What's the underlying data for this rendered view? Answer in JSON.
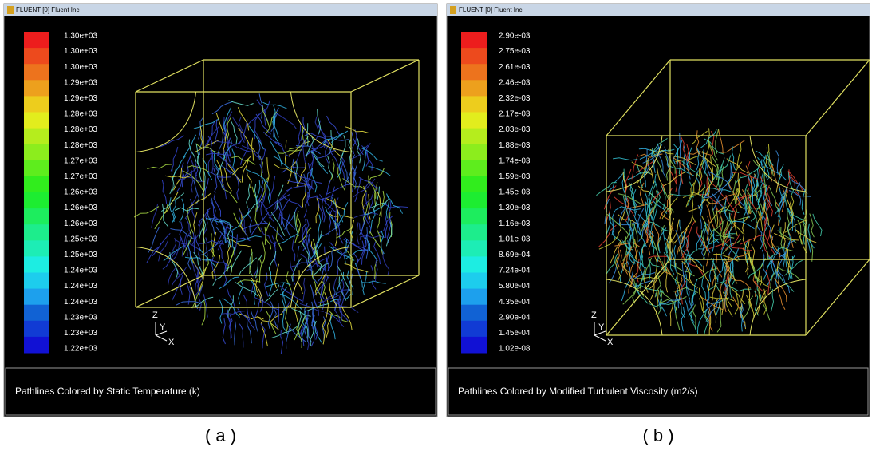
{
  "panels": [
    {
      "window_title": "FLUENT [0] Fluent Inc",
      "colorbar_labels": [
        "1.30e+03",
        "1.30e+03",
        "1.30e+03",
        "1.29e+03",
        "1.29e+03",
        "1.28e+03",
        "1.28e+03",
        "1.28e+03",
        "1.27e+03",
        "1.27e+03",
        "1.26e+03",
        "1.26e+03",
        "1.26e+03",
        "1.25e+03",
        "1.25e+03",
        "1.24e+03",
        "1.24e+03",
        "1.24e+03",
        "1.23e+03",
        "1.23e+03",
        "1.22e+03"
      ],
      "triad": [
        "Z",
        "Y",
        "X"
      ],
      "caption": "Pathlines Colored by Static Temperature (k)",
      "label": "( a )"
    },
    {
      "window_title": "FLUENT [0] Fluent Inc",
      "colorbar_labels": [
        "2.90e-03",
        "2.75e-03",
        "2.61e-03",
        "2.46e-03",
        "2.32e-03",
        "2.17e-03",
        "2.03e-03",
        "1.88e-03",
        "1.74e-03",
        "1.59e-03",
        "1.45e-03",
        "1.30e-03",
        "1.16e-03",
        "1.01e-03",
        "8.69e-04",
        "7.24e-04",
        "5.80e-04",
        "4.35e-04",
        "2.90e-04",
        "1.45e-04",
        "1.02e-08"
      ],
      "triad": [
        "Z",
        "Y",
        "X"
      ],
      "caption": "Pathlines Colored by Modified Turbulent Viscosity (m2/s)",
      "label": "( b )"
    }
  ]
}
